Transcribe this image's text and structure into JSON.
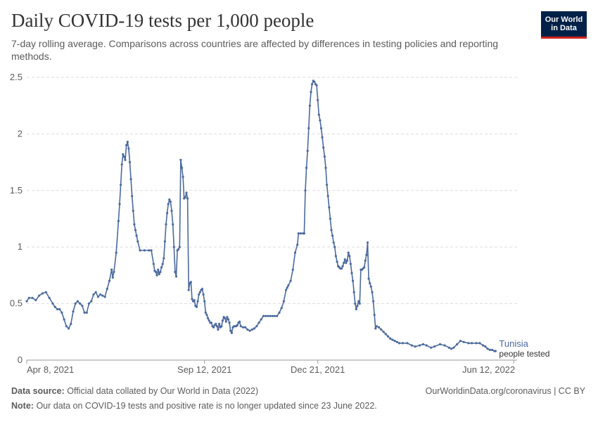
{
  "header": {
    "title": "Daily COVID-19 tests per 1,000 people",
    "subtitle": "7-day rolling average. Comparisons across countries are affected by differences in testing policies and reporting methods.",
    "logo_line1": "Our World",
    "logo_line2": "in Data"
  },
  "footer": {
    "source_label": "Data source:",
    "source_text": "Official data collated by Our World in Data (2022)",
    "credit": "OurWorldinData.org/coronavirus | CC BY",
    "note_label": "Note:",
    "note_text": "Our data on COVID-19 tests and positive rate is no longer updated since 23 June 2022."
  },
  "colors": {
    "line": "#4c6a9c",
    "grid": "#dddddd",
    "axis": "#999999",
    "text": "#5b5b5b"
  },
  "chart_data": {
    "type": "line",
    "title": "Daily COVID-19 tests per 1,000 people",
    "x_unit": "days since Apr 8, 2021",
    "xlim": [
      0,
      433
    ],
    "ylim": [
      0,
      2.5
    ],
    "yticks": [
      0,
      0.5,
      1,
      1.5,
      2,
      2.5
    ],
    "grid": true,
    "xtick_labels": [
      {
        "x": 0,
        "label": "Apr 8, 2021"
      },
      {
        "x": 157,
        "label": "Sep 12, 2021"
      },
      {
        "x": 257,
        "label": "Dec 21, 2021"
      },
      {
        "x": 430,
        "label": "Jun 12, 2022"
      }
    ],
    "series": [
      {
        "name": "Tunisia",
        "sublabel": "people tested",
        "points": [
          [
            0,
            0.52
          ],
          [
            2,
            0.55
          ],
          [
            5,
            0.55
          ],
          [
            8,
            0.53
          ],
          [
            11,
            0.57
          ],
          [
            14,
            0.59
          ],
          [
            17,
            0.6
          ],
          [
            20,
            0.55
          ],
          [
            23,
            0.5
          ],
          [
            25,
            0.47
          ],
          [
            27,
            0.45
          ],
          [
            29,
            0.45
          ],
          [
            31,
            0.42
          ],
          [
            33,
            0.36
          ],
          [
            35,
            0.3
          ],
          [
            37,
            0.28
          ],
          [
            39,
            0.32
          ],
          [
            41,
            0.43
          ],
          [
            43,
            0.5
          ],
          [
            45,
            0.52
          ],
          [
            47,
            0.5
          ],
          [
            49,
            0.48
          ],
          [
            51,
            0.42
          ],
          [
            53,
            0.42
          ],
          [
            55,
            0.5
          ],
          [
            57,
            0.52
          ],
          [
            59,
            0.58
          ],
          [
            61,
            0.6
          ],
          [
            63,
            0.56
          ],
          [
            65,
            0.58
          ],
          [
            67,
            0.57
          ],
          [
            69,
            0.56
          ],
          [
            71,
            0.63
          ],
          [
            73,
            0.7
          ],
          [
            75,
            0.8
          ],
          [
            76,
            0.73
          ],
          [
            77,
            0.78
          ],
          [
            79,
            0.95
          ],
          [
            81,
            1.23
          ],
          [
            82,
            1.38
          ],
          [
            83,
            1.55
          ],
          [
            84,
            1.73
          ],
          [
            85,
            1.82
          ],
          [
            86,
            1.8
          ],
          [
            87,
            1.77
          ],
          [
            88,
            1.9
          ],
          [
            89,
            1.93
          ],
          [
            90,
            1.87
          ],
          [
            91,
            1.75
          ],
          [
            92,
            1.6
          ],
          [
            93,
            1.45
          ],
          [
            94,
            1.32
          ],
          [
            95,
            1.2
          ],
          [
            96,
            1.15
          ],
          [
            97,
            1.1
          ],
          [
            98,
            1.05
          ],
          [
            100,
            0.97
          ],
          [
            104,
            0.97
          ],
          [
            108,
            0.97
          ],
          [
            110,
            0.97
          ],
          [
            112,
            0.85
          ],
          [
            113,
            0.79
          ],
          [
            114,
            0.78
          ],
          [
            115,
            0.75
          ],
          [
            116,
            0.8
          ],
          [
            117,
            0.76
          ],
          [
            118,
            0.78
          ],
          [
            119,
            0.82
          ],
          [
            120,
            0.85
          ],
          [
            121,
            0.9
          ],
          [
            122,
            1.05
          ],
          [
            123,
            1.2
          ],
          [
            124,
            1.3
          ],
          [
            125,
            1.38
          ],
          [
            126,
            1.42
          ],
          [
            127,
            1.4
          ],
          [
            128,
            1.32
          ],
          [
            129,
            1.2
          ],
          [
            130,
            1.0
          ],
          [
            131,
            0.78
          ],
          [
            132,
            0.74
          ],
          [
            133,
            0.97
          ],
          [
            134,
            0.98
          ],
          [
            135,
            1.0
          ],
          [
            136,
            1.77
          ],
          [
            137,
            1.7
          ],
          [
            138,
            1.62
          ],
          [
            139,
            1.43
          ],
          [
            140,
            1.44
          ],
          [
            141,
            1.48
          ],
          [
            142,
            1.43
          ],
          [
            143,
            0.62
          ],
          [
            144,
            0.68
          ],
          [
            145,
            0.69
          ],
          [
            146,
            0.54
          ],
          [
            147,
            0.52
          ],
          [
            148,
            0.53
          ],
          [
            149,
            0.48
          ],
          [
            150,
            0.47
          ],
          [
            151,
            0.52
          ],
          [
            152,
            0.58
          ],
          [
            153,
            0.6
          ],
          [
            154,
            0.62
          ],
          [
            155,
            0.63
          ],
          [
            156,
            0.58
          ],
          [
            157,
            0.52
          ],
          [
            158,
            0.42
          ],
          [
            159,
            0.4
          ],
          [
            160,
            0.37
          ],
          [
            161,
            0.35
          ],
          [
            162,
            0.33
          ],
          [
            163,
            0.33
          ],
          [
            164,
            0.3
          ],
          [
            165,
            0.29
          ],
          [
            166,
            0.31
          ],
          [
            167,
            0.32
          ],
          [
            168,
            0.3
          ],
          [
            169,
            0.27
          ],
          [
            170,
            0.32
          ],
          [
            171,
            0.29
          ],
          [
            172,
            0.3
          ],
          [
            173,
            0.35
          ],
          [
            174,
            0.38
          ],
          [
            175,
            0.37
          ],
          [
            176,
            0.34
          ],
          [
            177,
            0.38
          ],
          [
            178,
            0.36
          ],
          [
            179,
            0.33
          ],
          [
            180,
            0.26
          ],
          [
            181,
            0.24
          ],
          [
            182,
            0.29
          ],
          [
            183,
            0.3
          ],
          [
            184,
            0.3
          ],
          [
            185,
            0.3
          ],
          [
            186,
            0.31
          ],
          [
            187,
            0.33
          ],
          [
            188,
            0.34
          ],
          [
            189,
            0.3
          ],
          [
            191,
            0.29
          ],
          [
            193,
            0.29
          ],
          [
            195,
            0.27
          ],
          [
            197,
            0.26
          ],
          [
            199,
            0.27
          ],
          [
            201,
            0.28
          ],
          [
            203,
            0.3
          ],
          [
            205,
            0.33
          ],
          [
            207,
            0.36
          ],
          [
            209,
            0.39
          ],
          [
            211,
            0.39
          ],
          [
            213,
            0.39
          ],
          [
            215,
            0.39
          ],
          [
            217,
            0.39
          ],
          [
            219,
            0.39
          ],
          [
            221,
            0.39
          ],
          [
            223,
            0.42
          ],
          [
            225,
            0.46
          ],
          [
            227,
            0.52
          ],
          [
            229,
            0.62
          ],
          [
            230,
            0.64
          ],
          [
            231,
            0.66
          ],
          [
            233,
            0.7
          ],
          [
            235,
            0.8
          ],
          [
            237,
            0.95
          ],
          [
            239,
            1.02
          ],
          [
            240,
            1.12
          ],
          [
            242,
            1.12
          ],
          [
            244,
            1.12
          ],
          [
            245,
            1.12
          ],
          [
            246,
            1.5
          ],
          [
            247,
            1.7
          ],
          [
            248,
            1.85
          ],
          [
            249,
            2.05
          ],
          [
            250,
            2.25
          ],
          [
            251,
            2.37
          ],
          [
            252,
            2.44
          ],
          [
            253,
            2.47
          ],
          [
            254,
            2.46
          ],
          [
            255,
            2.44
          ],
          [
            256,
            2.43
          ],
          [
            257,
            2.3
          ],
          [
            258,
            2.17
          ],
          [
            259,
            2.12
          ],
          [
            260,
            2.05
          ],
          [
            261,
            1.97
          ],
          [
            262,
            1.88
          ],
          [
            263,
            1.8
          ],
          [
            264,
            1.7
          ],
          [
            265,
            1.55
          ],
          [
            266,
            1.45
          ],
          [
            267,
            1.35
          ],
          [
            268,
            1.25
          ],
          [
            269,
            1.15
          ],
          [
            270,
            1.1
          ],
          [
            271,
            1.04
          ],
          [
            272,
            1.0
          ],
          [
            273,
            0.92
          ],
          [
            274,
            0.87
          ],
          [
            275,
            0.83
          ],
          [
            276,
            0.82
          ],
          [
            277,
            0.81
          ],
          [
            278,
            0.81
          ],
          [
            279,
            0.83
          ],
          [
            280,
            0.86
          ],
          [
            281,
            0.89
          ],
          [
            282,
            0.86
          ],
          [
            283,
            0.88
          ],
          [
            284,
            0.95
          ],
          [
            285,
            0.92
          ],
          [
            286,
            0.85
          ],
          [
            287,
            0.77
          ],
          [
            288,
            0.7
          ],
          [
            289,
            0.6
          ],
          [
            290,
            0.5
          ],
          [
            291,
            0.45
          ],
          [
            292,
            0.48
          ],
          [
            293,
            0.52
          ],
          [
            294,
            0.5
          ],
          [
            295,
            0.8
          ],
          [
            296,
            0.8
          ],
          [
            297,
            0.81
          ],
          [
            298,
            0.82
          ],
          [
            299,
            0.88
          ],
          [
            300,
            0.93
          ],
          [
            301,
            1.04
          ],
          [
            302,
            0.72
          ],
          [
            303,
            0.68
          ],
          [
            304,
            0.65
          ],
          [
            305,
            0.6
          ],
          [
            306,
            0.52
          ],
          [
            307,
            0.4
          ],
          [
            308,
            0.28
          ],
          [
            309,
            0.3
          ],
          [
            311,
            0.29
          ],
          [
            313,
            0.27
          ],
          [
            315,
            0.25
          ],
          [
            317,
            0.23
          ],
          [
            319,
            0.21
          ],
          [
            321,
            0.19
          ],
          [
            323,
            0.18
          ],
          [
            325,
            0.17
          ],
          [
            327,
            0.16
          ],
          [
            329,
            0.15
          ],
          [
            332,
            0.15
          ],
          [
            336,
            0.15
          ],
          [
            340,
            0.13
          ],
          [
            343,
            0.12
          ],
          [
            347,
            0.13
          ],
          [
            350,
            0.14
          ],
          [
            353,
            0.13
          ],
          [
            357,
            0.11
          ],
          [
            360,
            0.12
          ],
          [
            365,
            0.14
          ],
          [
            369,
            0.13
          ],
          [
            373,
            0.11
          ],
          [
            375,
            0.1
          ],
          [
            377,
            0.11
          ],
          [
            380,
            0.14
          ],
          [
            383,
            0.17
          ],
          [
            386,
            0.16
          ],
          [
            390,
            0.15
          ],
          [
            393,
            0.15
          ],
          [
            397,
            0.15
          ],
          [
            400,
            0.15
          ],
          [
            403,
            0.13
          ],
          [
            405,
            0.12
          ],
          [
            407,
            0.1
          ],
          [
            409,
            0.09
          ],
          [
            411,
            0.09
          ],
          [
            413,
            0.08
          ],
          [
            414,
            0.08
          ]
        ]
      }
    ]
  }
}
